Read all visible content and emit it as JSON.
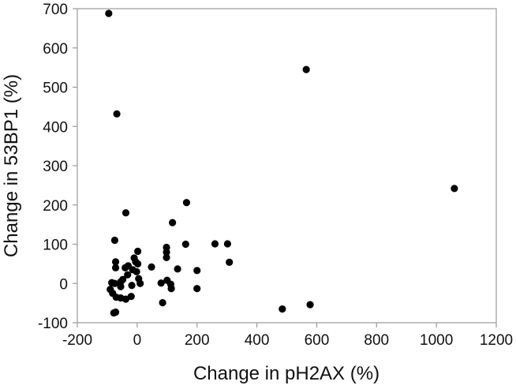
{
  "chart_data": {
    "type": "scatter",
    "xlabel": "Change in pH2AX (%)",
    "ylabel": "Change in 53BP1 (%)",
    "xlim": [
      -200,
      1200
    ],
    "ylim": [
      -100,
      700
    ],
    "x_ticks": [
      "-200",
      "0",
      "200",
      "400",
      "600",
      "800",
      "1000",
      "1200"
    ],
    "y_ticks": [
      "-100",
      "0",
      "100",
      "200",
      "300",
      "400",
      "500",
      "600",
      "700"
    ],
    "grid": false,
    "marker_color": "#000000",
    "points": [
      {
        "x": -95,
        "y": 688
      },
      {
        "x": -68,
        "y": 432
      },
      {
        "x": 565,
        "y": 545
      },
      {
        "x": 1060,
        "y": 242
      },
      {
        "x": -38,
        "y": 180
      },
      {
        "x": 165,
        "y": 206
      },
      {
        "x": 118,
        "y": 155
      },
      {
        "x": -75,
        "y": 110
      },
      {
        "x": 162,
        "y": 100
      },
      {
        "x": 260,
        "y": 101
      },
      {
        "x": 302,
        "y": 101
      },
      {
        "x": 308,
        "y": 54
      },
      {
        "x": 98,
        "y": 92
      },
      {
        "x": 98,
        "y": 80
      },
      {
        "x": 98,
        "y": 66
      },
      {
        "x": 2,
        "y": 82
      },
      {
        "x": -10,
        "y": 65
      },
      {
        "x": -72,
        "y": 55
      },
      {
        "x": -5,
        "y": 55
      },
      {
        "x": 2,
        "y": 50
      },
      {
        "x": -30,
        "y": 45
      },
      {
        "x": -40,
        "y": 40
      },
      {
        "x": 48,
        "y": 42
      },
      {
        "x": -72,
        "y": 40
      },
      {
        "x": 135,
        "y": 37
      },
      {
        "x": -15,
        "y": 35
      },
      {
        "x": 200,
        "y": 33
      },
      {
        "x": -2,
        "y": 30
      },
      {
        "x": -32,
        "y": 22
      },
      {
        "x": 5,
        "y": 12
      },
      {
        "x": -48,
        "y": 10
      },
      {
        "x": -55,
        "y": 4
      },
      {
        "x": -85,
        "y": 2
      },
      {
        "x": -75,
        "y": 0
      },
      {
        "x": 80,
        "y": 1
      },
      {
        "x": 10,
        "y": 0
      },
      {
        "x": 100,
        "y": 8
      },
      {
        "x": 112,
        "y": -2
      },
      {
        "x": -18,
        "y": -5
      },
      {
        "x": -55,
        "y": -8
      },
      {
        "x": -90,
        "y": -15
      },
      {
        "x": 114,
        "y": -13
      },
      {
        "x": 200,
        "y": -13
      },
      {
        "x": -82,
        "y": -25
      },
      {
        "x": -70,
        "y": -35
      },
      {
        "x": -55,
        "y": -37
      },
      {
        "x": -38,
        "y": -40
      },
      {
        "x": -20,
        "y": -33
      },
      {
        "x": 85,
        "y": -49
      },
      {
        "x": 485,
        "y": -65
      },
      {
        "x": 578,
        "y": -54
      },
      {
        "x": -78,
        "y": -75
      },
      {
        "x": -72,
        "y": -73
      }
    ]
  }
}
